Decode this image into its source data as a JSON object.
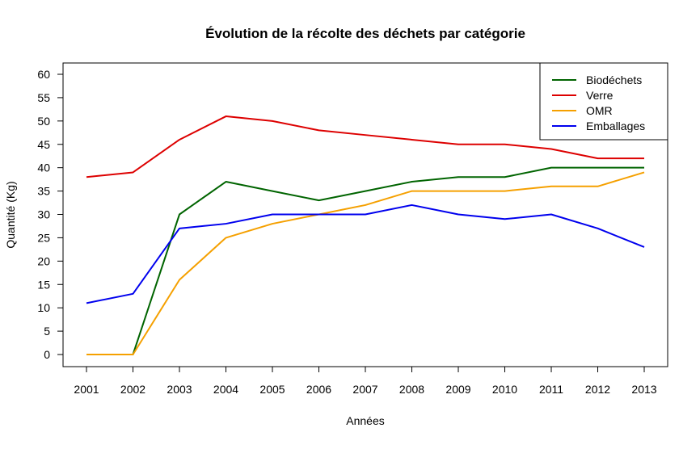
{
  "chart_data": {
    "type": "line",
    "title": "Évolution de la récolte des déchets par catégorie",
    "xlabel": "Années",
    "ylabel": "Quantité (Kg)",
    "x": [
      2001,
      2002,
      2003,
      2004,
      2005,
      2006,
      2007,
      2008,
      2009,
      2010,
      2011,
      2012,
      2013
    ],
    "ylim": [
      0,
      60
    ],
    "yticks": [
      0,
      5,
      10,
      15,
      20,
      25,
      30,
      35,
      40,
      45,
      50,
      55,
      60
    ],
    "grid": false,
    "legend_position": "top-right",
    "series": [
      {
        "name": "Biodéchets",
        "color": "#006400",
        "values": [
          0,
          0,
          30,
          37,
          35,
          33,
          35,
          37,
          38,
          38,
          40,
          40,
          40
        ]
      },
      {
        "name": "Verre",
        "color": "#dd0000",
        "values": [
          38,
          39,
          46,
          51,
          50,
          48,
          47,
          46,
          45,
          45,
          44,
          42,
          42
        ]
      },
      {
        "name": "OMR",
        "color": "#f5a000",
        "values": [
          0,
          0,
          16,
          25,
          28,
          30,
          32,
          35,
          35,
          35,
          36,
          36,
          39
        ]
      },
      {
        "name": "Emballages",
        "color": "#0000ee",
        "values": [
          11,
          13,
          27,
          28,
          30,
          30,
          30,
          32,
          30,
          29,
          30,
          27,
          23
        ]
      }
    ]
  }
}
